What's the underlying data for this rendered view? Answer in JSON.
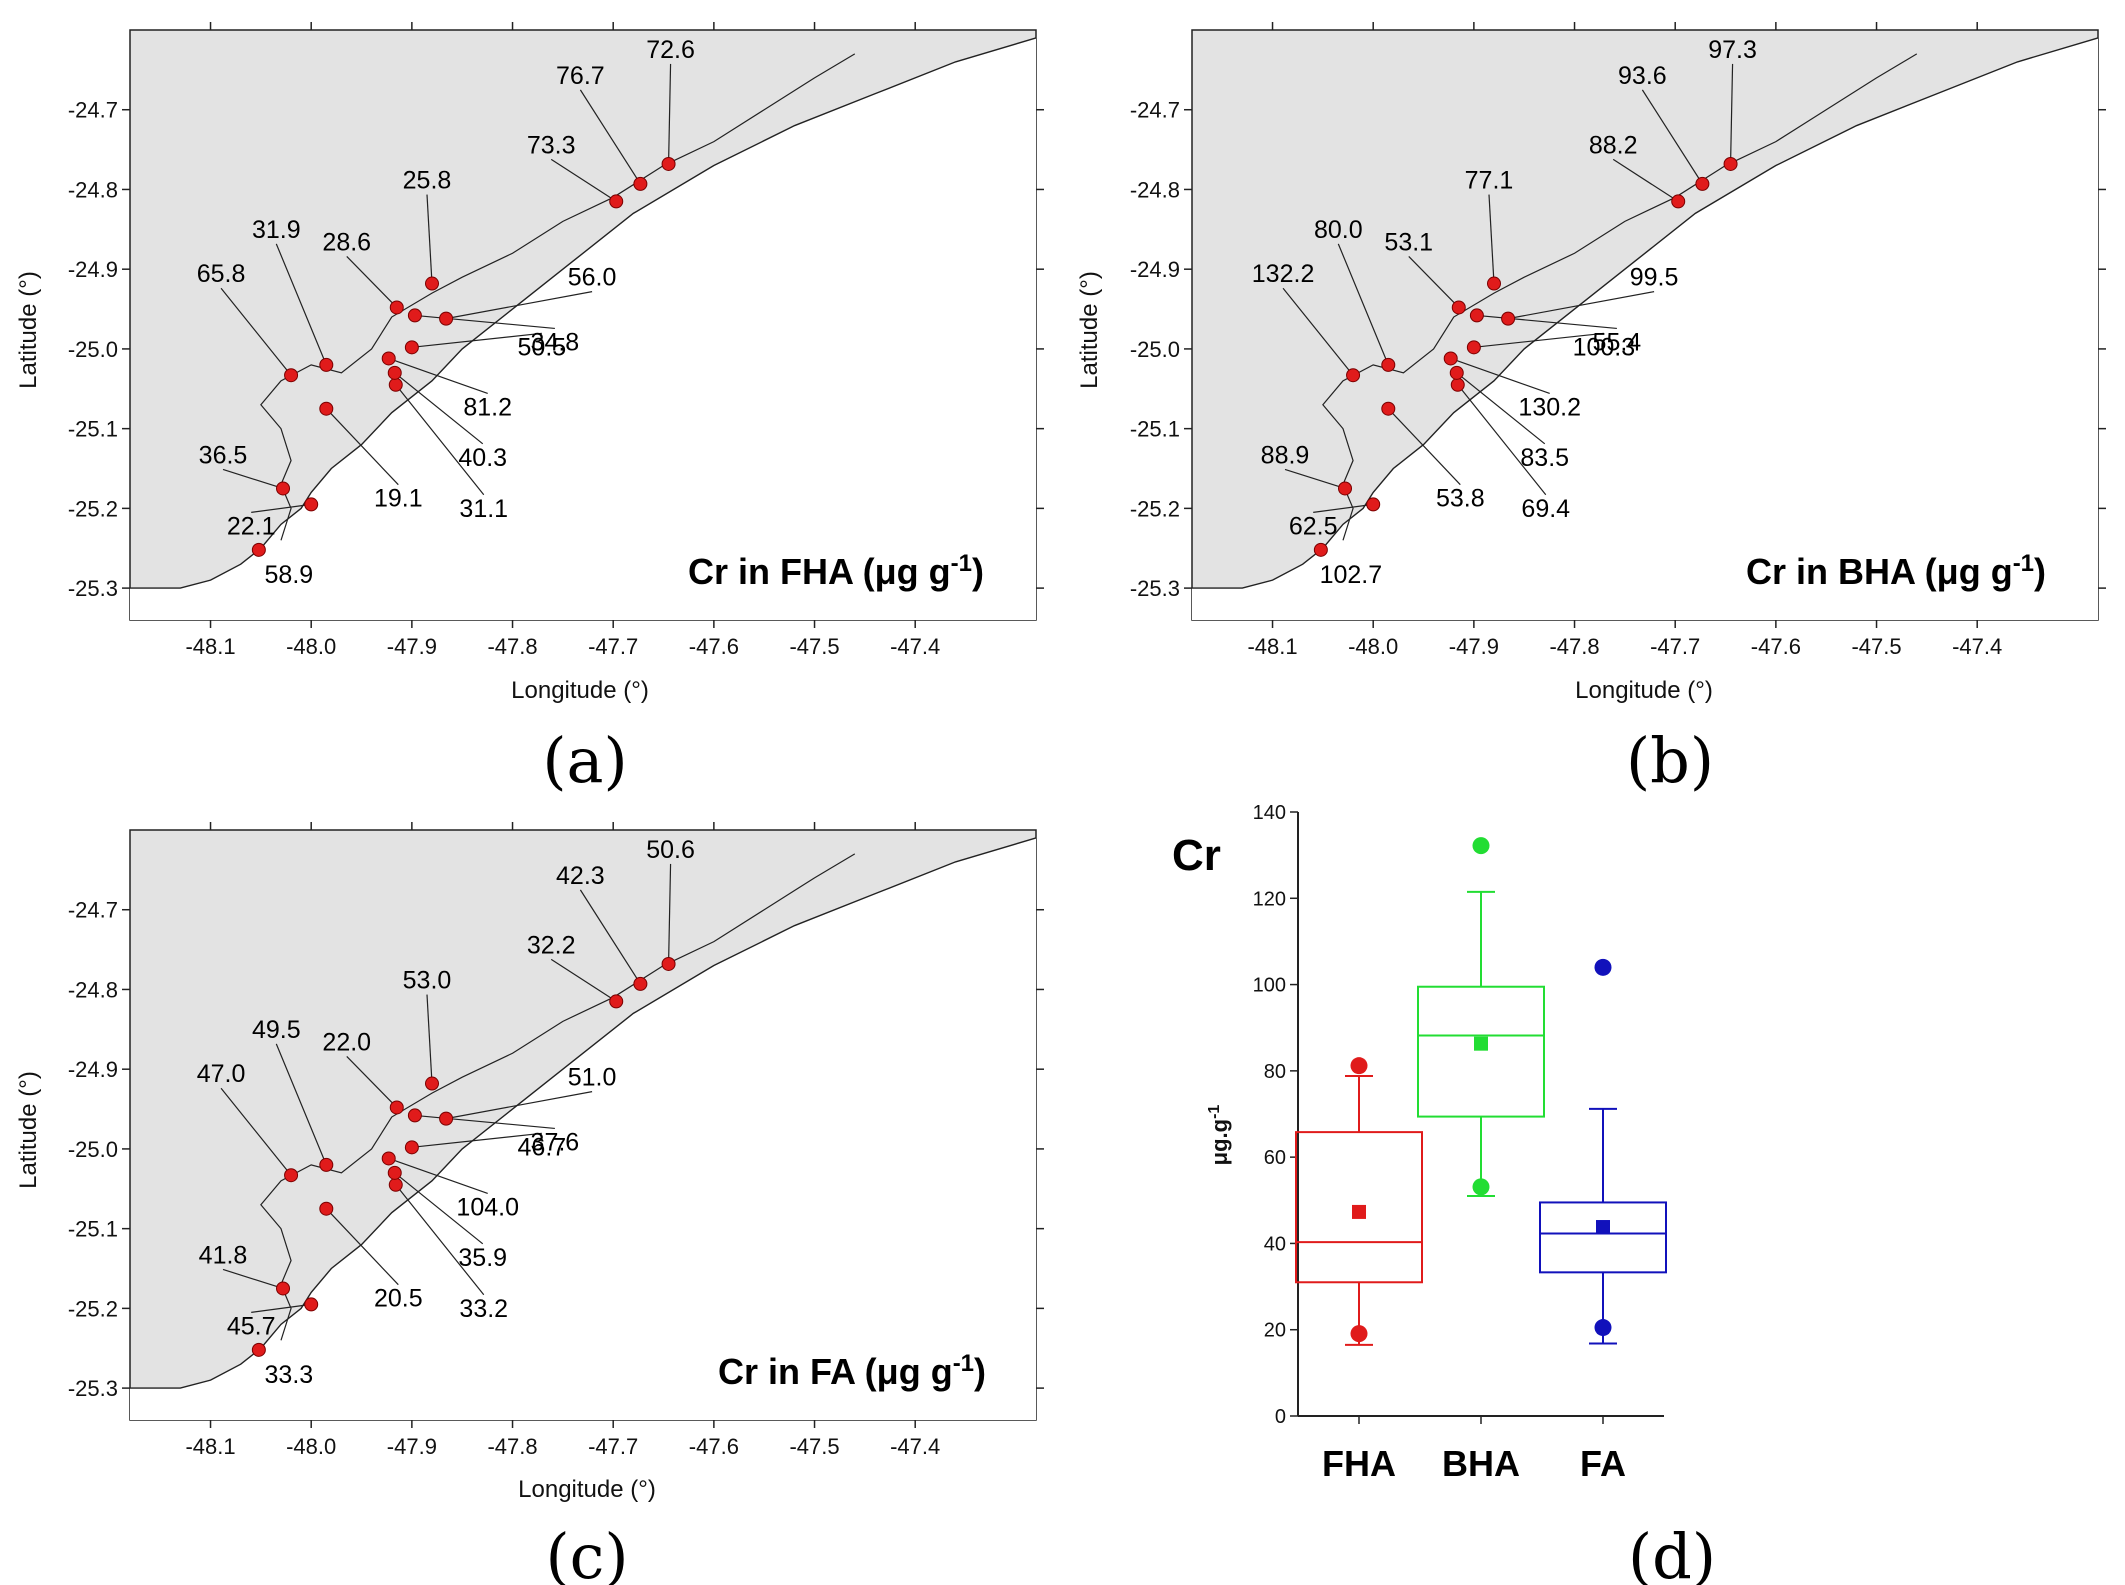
{
  "chart_data": [
    {
      "type": "scatter",
      "panel": "(a)",
      "title": "Cr in FHA",
      "title_unit": "μg g",
      "title_sup": "-1",
      "xlabel": "Longitude (°)",
      "ylabel": "Latitude (°)",
      "xlim": [
        -48.18,
        -47.28
      ],
      "ylim": [
        -25.34,
        -24.6
      ],
      "x_ticks": [
        "-48.1",
        "-48.0",
        "-47.9",
        "-47.8",
        "-47.7",
        "-47.6",
        "-47.5",
        "-47.4"
      ],
      "y_ticks": [
        "-24.7",
        "-24.8",
        "-24.9",
        "-25.0",
        "-25.1",
        "-25.2",
        "-25.3"
      ],
      "stations": [
        {
          "lon": -48.052,
          "lat": -25.252,
          "value": "58.9"
        },
        {
          "lon": -48.0,
          "lat": -25.195,
          "value": "22.1"
        },
        {
          "lon": -48.028,
          "lat": -25.175,
          "value": "36.5"
        },
        {
          "lon": -47.985,
          "lat": -25.075,
          "value": "19.1"
        },
        {
          "lon": -48.02,
          "lat": -25.033,
          "value": "65.8"
        },
        {
          "lon": -47.985,
          "lat": -25.02,
          "value": "31.9"
        },
        {
          "lon": -47.916,
          "lat": -25.045,
          "value": "31.1"
        },
        {
          "lon": -47.917,
          "lat": -25.03,
          "value": "40.3"
        },
        {
          "lon": -47.923,
          "lat": -25.012,
          "value": "81.2"
        },
        {
          "lon": -47.9,
          "lat": -24.998,
          "value": "50.5"
        },
        {
          "lon": -47.897,
          "lat": -24.958,
          "value": "34.8"
        },
        {
          "lon": -47.866,
          "lat": -24.962,
          "value": "56.0"
        },
        {
          "lon": -47.915,
          "lat": -24.948,
          "value": "28.6"
        },
        {
          "lon": -47.88,
          "lat": -24.918,
          "value": "25.8"
        },
        {
          "lon": -47.697,
          "lat": -24.815,
          "value": "73.3"
        },
        {
          "lon": -47.673,
          "lat": -24.793,
          "value": "76.7"
        },
        {
          "lon": -47.645,
          "lat": -24.768,
          "value": "72.6"
        }
      ]
    },
    {
      "type": "scatter",
      "panel": "(b)",
      "title": "Cr in BHA",
      "title_unit": "μg g",
      "title_sup": "-1",
      "xlabel": "Longitude (°)",
      "ylabel": "Latitude (°)",
      "xlim": [
        -48.18,
        -47.28
      ],
      "ylim": [
        -25.34,
        -24.6
      ],
      "x_ticks": [
        "-48.1",
        "-48.0",
        "-47.9",
        "-47.8",
        "-47.7",
        "-47.6",
        "-47.5",
        "-47.4"
      ],
      "y_ticks": [
        "-24.7",
        "-24.8",
        "-24.9",
        "-25.0",
        "-25.1",
        "-25.2",
        "-25.3"
      ],
      "stations": [
        {
          "lon": -48.052,
          "lat": -25.252,
          "value": "102.7"
        },
        {
          "lon": -48.0,
          "lat": -25.195,
          "value": "62.5"
        },
        {
          "lon": -48.028,
          "lat": -25.175,
          "value": "88.9"
        },
        {
          "lon": -47.985,
          "lat": -25.075,
          "value": "53.8"
        },
        {
          "lon": -48.02,
          "lat": -25.033,
          "value": "132.2"
        },
        {
          "lon": -47.985,
          "lat": -25.02,
          "value": "80.0"
        },
        {
          "lon": -47.916,
          "lat": -25.045,
          "value": "69.4"
        },
        {
          "lon": -47.917,
          "lat": -25.03,
          "value": "83.5"
        },
        {
          "lon": -47.923,
          "lat": -25.012,
          "value": "130.2"
        },
        {
          "lon": -47.9,
          "lat": -24.998,
          "value": "100.3"
        },
        {
          "lon": -47.897,
          "lat": -24.958,
          "value": "55.4"
        },
        {
          "lon": -47.866,
          "lat": -24.962,
          "value": "99.5"
        },
        {
          "lon": -47.915,
          "lat": -24.948,
          "value": "53.1"
        },
        {
          "lon": -47.88,
          "lat": -24.918,
          "value": "77.1"
        },
        {
          "lon": -47.697,
          "lat": -24.815,
          "value": "88.2"
        },
        {
          "lon": -47.673,
          "lat": -24.793,
          "value": "93.6"
        },
        {
          "lon": -47.645,
          "lat": -24.768,
          "value": "97.3"
        }
      ]
    },
    {
      "type": "scatter",
      "panel": "(c)",
      "title": "Cr in FA",
      "title_unit": "μg g",
      "title_sup": "-1",
      "xlabel": "Longitude (°)",
      "ylabel": "Latitude (°)",
      "xlim": [
        -48.18,
        -47.28
      ],
      "ylim": [
        -25.34,
        -24.6
      ],
      "x_ticks": [
        "-48.1",
        "-48.0",
        "-47.9",
        "-47.8",
        "-47.7",
        "-47.6",
        "-47.5",
        "-47.4"
      ],
      "y_ticks": [
        "-24.7",
        "-24.8",
        "-24.9",
        "-25.0",
        "-25.1",
        "-25.2",
        "-25.3"
      ],
      "stations": [
        {
          "lon": -48.052,
          "lat": -25.252,
          "value": "33.3"
        },
        {
          "lon": -48.0,
          "lat": -25.195,
          "value": "45.7"
        },
        {
          "lon": -48.028,
          "lat": -25.175,
          "value": "41.8"
        },
        {
          "lon": -47.985,
          "lat": -25.075,
          "value": "20.5"
        },
        {
          "lon": -48.02,
          "lat": -25.033,
          "value": "47.0"
        },
        {
          "lon": -47.985,
          "lat": -25.02,
          "value": "49.5"
        },
        {
          "lon": -47.916,
          "lat": -25.045,
          "value": "33.2"
        },
        {
          "lon": -47.917,
          "lat": -25.03,
          "value": "35.9"
        },
        {
          "lon": -47.923,
          "lat": -25.012,
          "value": "104.0"
        },
        {
          "lon": -47.9,
          "lat": -24.998,
          "value": "46.7"
        },
        {
          "lon": -47.897,
          "lat": -24.958,
          "value": "37.6"
        },
        {
          "lon": -47.866,
          "lat": -24.962,
          "value": "51.0"
        },
        {
          "lon": -47.915,
          "lat": -24.948,
          "value": "22.0"
        },
        {
          "lon": -47.88,
          "lat": -24.918,
          "value": "53.0"
        },
        {
          "lon": -47.697,
          "lat": -24.815,
          "value": "32.2"
        },
        {
          "lon": -47.673,
          "lat": -24.793,
          "value": "42.3"
        },
        {
          "lon": -47.645,
          "lat": -24.768,
          "value": "50.6"
        }
      ]
    },
    {
      "type": "box",
      "panel": "(d)",
      "title": "Cr",
      "xlabel": "",
      "ylabel": "μg.g",
      "ylabel_sup": "-1",
      "ylim": [
        0,
        140
      ],
      "y_ticks": [
        0,
        20,
        40,
        60,
        80,
        100,
        120,
        140
      ],
      "categories": [
        "FHA",
        "BHA",
        "FA"
      ],
      "series": [
        {
          "name": "FHA",
          "color": "#e01b1b",
          "whisker_low": 16.5,
          "q1": 31,
          "median": 40.3,
          "q3": 65.8,
          "whisker_high": 78.8,
          "mean": 47.3,
          "min": 19.1,
          "max": 81.2
        },
        {
          "name": "BHA",
          "color": "#22dd33",
          "whisker_low": 51,
          "q1": 69.4,
          "median": 88.2,
          "q3": 99.5,
          "whisker_high": 121.5,
          "mean": 86.3,
          "min": 53.1,
          "max": 132.2
        },
        {
          "name": "FA",
          "color": "#1111bb",
          "whisker_low": 16.8,
          "q1": 33.3,
          "median": 42.3,
          "q3": 49.5,
          "whisker_high": 71.2,
          "mean": 43.8,
          "min": 20.5,
          "max": 104.0
        }
      ]
    }
  ]
}
